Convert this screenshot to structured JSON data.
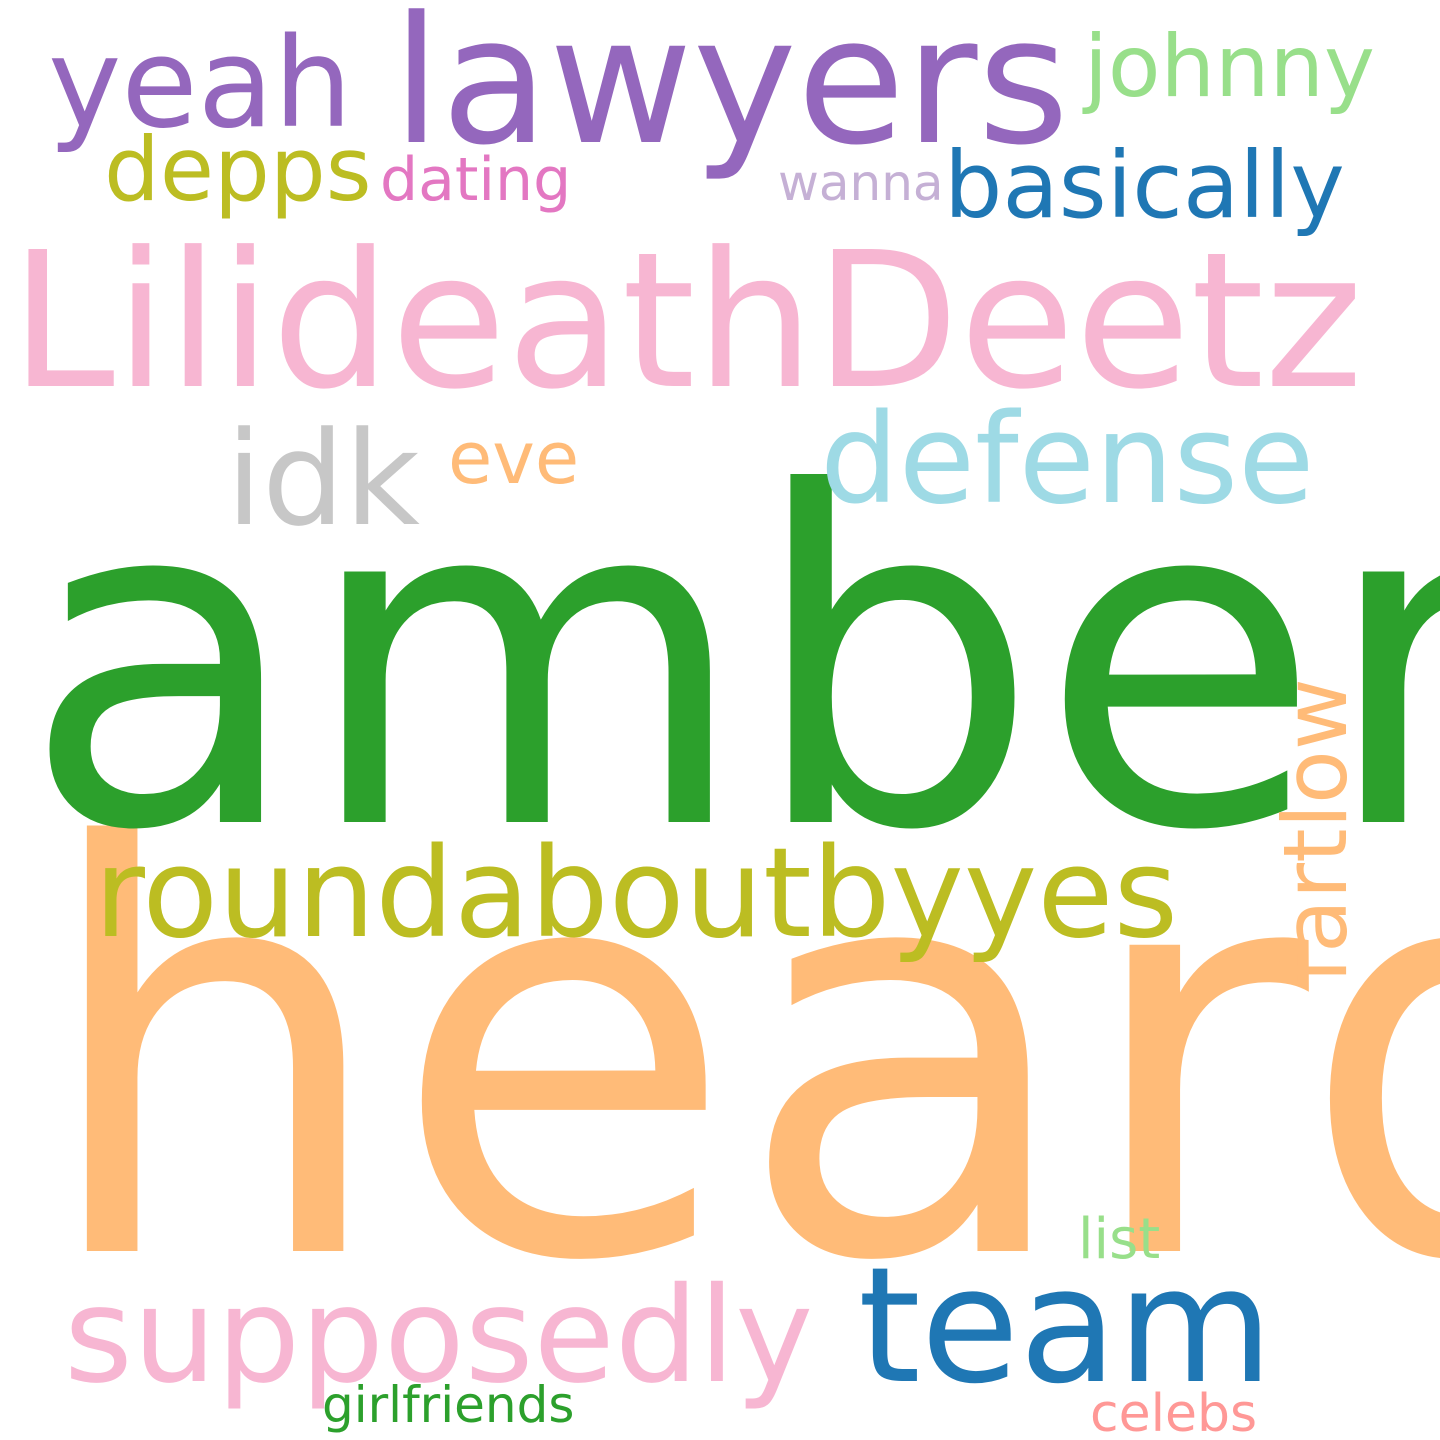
{
  "words": {
    "amber": {
      "text": "amber",
      "color": "#2ca02c"
    },
    "heard": {
      "text": "heard",
      "color": "#ffbb78"
    },
    "lilideath": {
      "text": "LilideathDeetz",
      "color": "#f7b6d2"
    },
    "lawyers": {
      "text": "lawyers",
      "color": "#9467bd"
    },
    "yeah": {
      "text": "yeah",
      "color": "#9467bd"
    },
    "johnny": {
      "text": "johnny",
      "color": "#98df8a"
    },
    "depps": {
      "text": "depps",
      "color": "#bcbd22"
    },
    "dating": {
      "text": "dating",
      "color": "#e377c2"
    },
    "wanna": {
      "text": "wanna",
      "color": "#c5b0d5"
    },
    "basically": {
      "text": "basically",
      "color": "#1f77b4"
    },
    "idk": {
      "text": "idk",
      "color": "#c7c7c7"
    },
    "eve": {
      "text": "eve",
      "color": "#ffbb78"
    },
    "defense": {
      "text": "defense",
      "color": "#9edae5"
    },
    "roundabout": {
      "text": "roundaboutbyyes",
      "color": "#bcbd22"
    },
    "fartlow": {
      "text": "fartlow",
      "color": "#ffbb78"
    },
    "list": {
      "text": "list",
      "color": "#98df8a"
    },
    "supposedly": {
      "text": "supposedly",
      "color": "#f7b6d2"
    },
    "team": {
      "text": "team",
      "color": "#1f77b4"
    },
    "girlfriends": {
      "text": "girlfriends",
      "color": "#2ca02c"
    },
    "celebs": {
      "text": "celebs",
      "color": "#ff9896"
    }
  }
}
